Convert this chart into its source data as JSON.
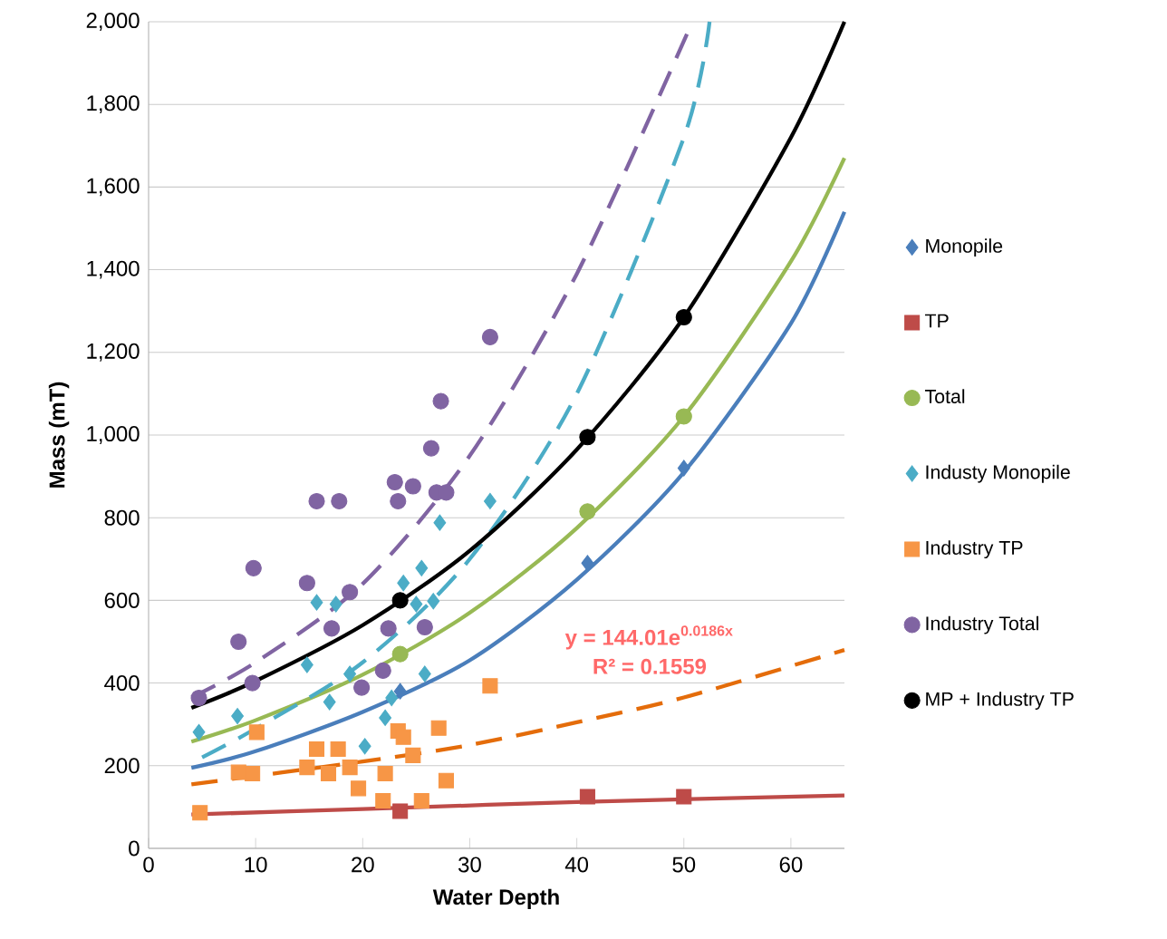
{
  "chart_data": {
    "type": "scatter",
    "xlabel": "Water Depth",
    "ylabel": "Mass (mT)",
    "xlim": [
      0,
      65
    ],
    "ylim": [
      0,
      2000
    ],
    "xticks": [
      0,
      10,
      20,
      30,
      40,
      50,
      60
    ],
    "yticks": [
      0,
      200,
      400,
      600,
      800,
      {
        "value": 1000,
        "label": "1,000"
      },
      {
        "value": 1200,
        "label": "1,200"
      },
      {
        "value": 1400,
        "label": "1,400"
      },
      {
        "value": 1600,
        "label": "1,600"
      },
      {
        "value": 1800,
        "label": "1,800"
      },
      {
        "value": 2000,
        "label": "2,000"
      }
    ],
    "grid": "y",
    "legend": "right",
    "annotations": [
      "y = 144.01e$^{0.0186x}$",
      "R² = 0.1559"
    ],
    "series": [
      {
        "name": "Monopile",
        "marker": "diamond",
        "color": "#4a7ebb",
        "x": [
          23.5,
          41,
          50
        ],
        "values": [
          380,
          690,
          920
        ]
      },
      {
        "name": "TP",
        "marker": "square",
        "color": "#be4b48",
        "x": [
          23.5,
          41,
          50
        ],
        "values": [
          90,
          125,
          125
        ]
      },
      {
        "name": "Total",
        "marker": "circle",
        "color": "#98b954",
        "x": [
          23.5,
          41,
          50
        ],
        "values": [
          470,
          815,
          1045
        ]
      },
      {
        "name": "Industy Monopile",
        "marker": "diamond",
        "color": "#4bacc6",
        "x": [
          4.7,
          8.3,
          14.8,
          15.7,
          16.9,
          17.5,
          18.8,
          20.2,
          22.1,
          22.7,
          23.8,
          25.0,
          25.8,
          26.6,
          27.2,
          31.9,
          25.5
        ],
        "values": [
          281,
          320,
          444,
          595,
          354,
          591,
          422,
          247,
          316,
          364,
          642,
          591,
          422,
          598,
          788,
          840,
          678
        ]
      },
      {
        "name": "Industry TP",
        "marker": "square",
        "color": "#f79646",
        "x": [
          4.8,
          10.1,
          9.7,
          8.4,
          15.7,
          17.7,
          16.8,
          14.8,
          18.8,
          19.6,
          22.1,
          21.9,
          23.3,
          23.8,
          24.7,
          25.5,
          27.1,
          27.8,
          31.9
        ],
        "values": [
          86,
          281,
          181,
          184,
          240,
          240,
          181,
          196,
          196,
          145,
          181,
          115,
          284,
          269,
          225,
          115,
          291,
          164,
          393
        ]
      },
      {
        "name": "Industry Total",
        "marker": "circle",
        "color": "#8064a2",
        "x": [
          4.7,
          8.4,
          9.8,
          9.7,
          14.8,
          15.7,
          17.8,
          18.8,
          17.1,
          19.9,
          21.9,
          23.0,
          24.7,
          23.3,
          22.4,
          25.8,
          26.9,
          27.8,
          27.3,
          26.4,
          31.9
        ],
        "values": [
          364,
          500,
          678,
          400,
          642,
          840,
          840,
          620,
          532,
          389,
          430,
          886,
          876,
          840,
          532,
          535,
          861,
          861,
          1082,
          968,
          1237
        ]
      },
      {
        "name": "MP + Industry TP",
        "marker": "circle",
        "color": "#000000",
        "x": [
          23.5,
          41,
          50
        ],
        "values": [
          600,
          995,
          1285
        ]
      },
      {
        "type": "line",
        "line_style": "solid",
        "color": "#4a7ebb",
        "x": [
          4,
          10,
          20,
          30,
          40,
          50,
          60,
          65
        ],
        "values": [
          195,
          235,
          330,
          455,
          650,
          910,
          1270,
          1540
        ]
      },
      {
        "type": "line",
        "line_style": "solid",
        "color": "#be4b48",
        "x": [
          4,
          20,
          40,
          65
        ],
        "values": [
          82,
          95,
          112,
          128
        ]
      },
      {
        "type": "line",
        "line_style": "solid",
        "color": "#98b954",
        "x": [
          4,
          10,
          20,
          30,
          40,
          50,
          60,
          65
        ],
        "values": [
          258,
          310,
          420,
          570,
          775,
          1045,
          1420,
          1670
        ]
      },
      {
        "type": "line",
        "line_style": "dashed",
        "color": "#4bacc6",
        "x": [
          5,
          10,
          20,
          30,
          40,
          50,
          52.4
        ],
        "values": [
          220,
          290,
          450,
          700,
          1100,
          1720,
          2000
        ]
      },
      {
        "type": "line",
        "line_style": "dashed",
        "color": "#e46c0a",
        "x": [
          4,
          20,
          30,
          40,
          50,
          65
        ],
        "values": [
          155,
          210,
          250,
          305,
          365,
          480
        ]
      },
      {
        "type": "line",
        "line_style": "dashed",
        "color": "#8064a2",
        "x": [
          4,
          10,
          20,
          30,
          40,
          50.8
        ],
        "values": [
          365,
          450,
          640,
          950,
          1390,
          2000
        ]
      },
      {
        "type": "line",
        "line_style": "solid",
        "color": "#000000",
        "x": [
          4,
          10,
          20,
          30,
          40,
          50,
          60,
          65
        ],
        "values": [
          340,
          405,
          540,
          720,
          965,
          1285,
          1720,
          2000
        ]
      }
    ]
  }
}
